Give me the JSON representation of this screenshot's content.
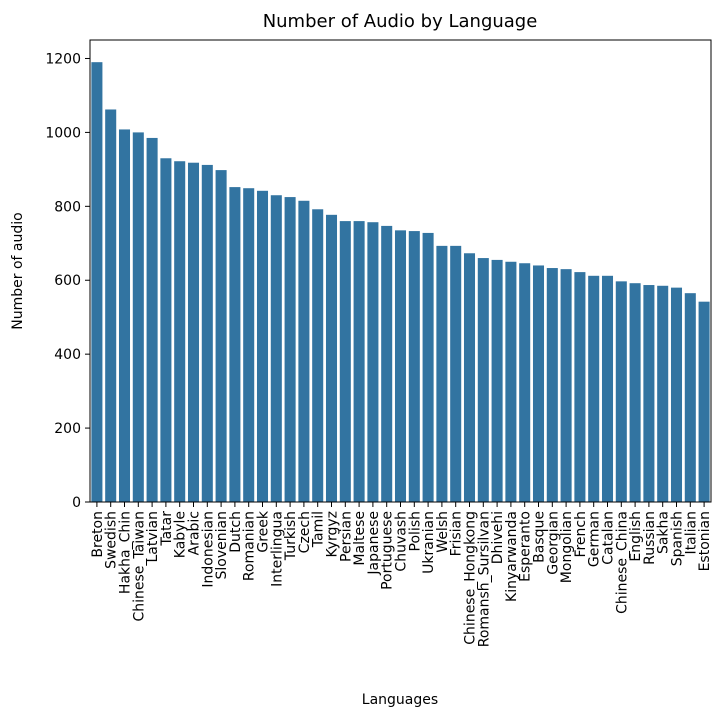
{
  "chart_data": {
    "type": "bar",
    "title": "Number of Audio by Language",
    "xlabel": "Languages",
    "ylabel": "Number of audio",
    "ylim": [
      0,
      1250
    ],
    "yticks": [
      0,
      200,
      400,
      600,
      800,
      1000,
      1200
    ],
    "grid": false,
    "bar_color": "#3274a1",
    "categories": [
      "Breton",
      "Swedish",
      "Hakha_Chin",
      "Chinese_Taiwan",
      "Latvian",
      "Tatar",
      "Kabyle",
      "Arabic",
      "Indonesian",
      "Slovenian",
      "Dutch",
      "Romanian",
      "Greek",
      "Interlingua",
      "Turkish",
      "Czech",
      "Tamil",
      "Kyrgyz",
      "Persian",
      "Maltese",
      "Japanese",
      "Portuguese",
      "Chuvash",
      "Polish",
      "Ukranian",
      "Welsh",
      "Frisian",
      "Chinese_Hongkong",
      "Romansh_Sursilvan",
      "Dhivehi",
      "Kinyarwanda",
      "Esperanto",
      "Basque",
      "Georgian",
      "Mongolian",
      "French",
      "German",
      "Catalan",
      "Chinese_China",
      "English",
      "Russian",
      "Sakha",
      "Spanish",
      "Italian",
      "Estonian"
    ],
    "values": [
      1190,
      1062,
      1008,
      1000,
      985,
      930,
      922,
      918,
      912,
      898,
      852,
      849,
      842,
      830,
      825,
      815,
      792,
      777,
      760,
      760,
      757,
      747,
      735,
      733,
      728,
      693,
      693,
      673,
      660,
      655,
      650,
      646,
      640,
      633,
      630,
      622,
      612,
      612,
      597,
      592,
      587,
      585,
      580,
      565,
      542
    ]
  }
}
